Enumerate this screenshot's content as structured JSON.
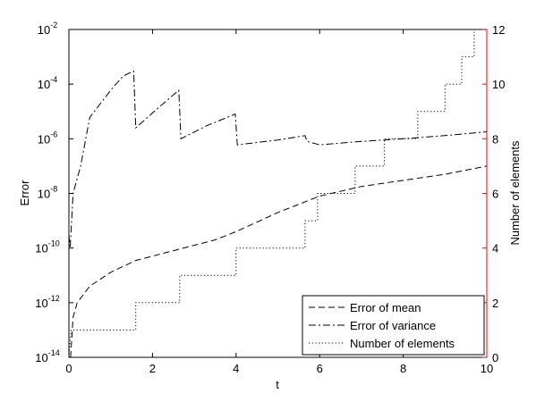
{
  "chart_data": {
    "type": "line",
    "xlabel": "t",
    "ylabel": "Error",
    "y2label": "Number of elements",
    "xlim": [
      0,
      10
    ],
    "xticks": [
      0,
      2,
      4,
      6,
      8,
      10
    ],
    "ylim": [
      1e-14,
      0.01
    ],
    "ylog": true,
    "yticks": [
      {
        "value": 1e-14,
        "label": "10",
        "sup": "-14"
      },
      {
        "value": 1e-12,
        "label": "10",
        "sup": "-12"
      },
      {
        "value": 1e-10,
        "label": "10",
        "sup": "-10"
      },
      {
        "value": 1e-08,
        "label": "10",
        "sup": "-8"
      },
      {
        "value": 1e-06,
        "label": "10",
        "sup": "-6"
      },
      {
        "value": 0.0001,
        "label": "10",
        "sup": "-4"
      },
      {
        "value": 0.01,
        "label": "10",
        "sup": "-2"
      }
    ],
    "y2lim": [
      0,
      12
    ],
    "y2ticks": [
      0,
      2,
      4,
      6,
      8,
      10,
      12
    ],
    "y2color": "#ff0000",
    "legend": "lower right",
    "series": [
      {
        "name": "Error of mean",
        "color": "#000000",
        "linestyle": "dashed",
        "x": [
          0.04,
          0.1,
          0.2,
          0.5,
          1,
          1.6,
          2.5,
          3.5,
          4,
          5,
          6,
          7,
          8,
          9,
          10
        ],
        "values": [
          1e-14,
          3e-13,
          1e-12,
          4e-12,
          1.3e-11,
          3.5e-11,
          8e-11,
          2e-10,
          4e-10,
          2e-09,
          8e-09,
          1.8e-08,
          3e-08,
          5e-08,
          1e-07
        ]
      },
      {
        "name": "Error of variance",
        "color": "#000000",
        "linestyle": "dashdot",
        "x": [
          0,
          0.03,
          0.1,
          0.28,
          0.5,
          1,
          1.3,
          1.55,
          1.6,
          2.1,
          2.63,
          2.68,
          3.3,
          3.98,
          4.03,
          5,
          5.65,
          5.7,
          6,
          7,
          8,
          9,
          10
        ],
        "values": [
          3e-10,
          1e-10,
          1e-08,
          1e-07,
          6e-06,
          6e-05,
          0.0002,
          0.0003,
          2.5e-06,
          1.2e-05,
          6e-05,
          1e-06,
          3e-06,
          8e-06,
          6e-07,
          9e-07,
          1.3e-06,
          8e-07,
          6e-07,
          8e-07,
          1e-06,
          1.3e-06,
          1.8e-06
        ]
      },
      {
        "name": "Number of elements",
        "color": "#000000",
        "linestyle": "dotted",
        "axis": "y2",
        "x": [
          0,
          0.05,
          1.6,
          1.6,
          2.65,
          2.65,
          4,
          4,
          5.65,
          5.65,
          5.95,
          5.95,
          6.85,
          6.85,
          7.55,
          7.55,
          8.35,
          8.35,
          9,
          9,
          9.4,
          9.4,
          9.7,
          9.7,
          10
        ],
        "values": [
          0,
          1,
          1,
          2,
          2,
          3,
          3,
          4,
          4,
          5,
          5,
          6,
          6,
          7,
          7,
          8,
          8,
          9,
          9,
          10,
          10,
          11,
          11,
          12,
          12
        ]
      }
    ]
  }
}
